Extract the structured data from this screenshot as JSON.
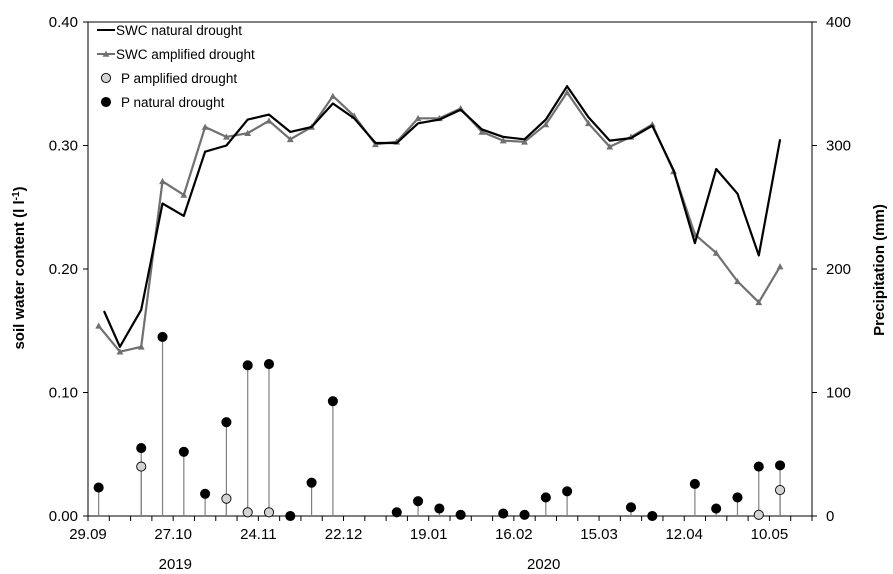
{
  "chart_data": {
    "type": "line",
    "x_categories": [
      "29.09",
      "",
      "",
      "",
      "27.10",
      "",
      "",
      "",
      "24.11",
      "",
      "",
      "",
      "22.12",
      "",
      "",
      "",
      "19.01",
      "",
      "",
      "",
      "16.02",
      "",
      "",
      "",
      "15.03",
      "",
      "",
      "",
      "12.04",
      "",
      "",
      "",
      "10.05",
      ""
    ],
    "x_tick_labels": [
      "29.09",
      "27.10",
      "24.11",
      "22.12",
      "19.01",
      "16.02",
      "15.03",
      "12.04",
      "10.05"
    ],
    "year_labels": [
      "2019",
      "2020"
    ],
    "ylabel": "soil water content  (l l",
    "ylabel_sup": "-1",
    "ylabel_close": ")",
    "y2label": "Precipitation (mm)",
    "ylim": [
      0,
      0.4
    ],
    "y2lim": [
      0,
      400
    ],
    "y_ticks": [
      "0.00",
      "0.10",
      "0.20",
      "0.30",
      "0.40"
    ],
    "y2_ticks": [
      "0",
      "100",
      "200",
      "300",
      "400"
    ],
    "legend_position": "top-left",
    "series": [
      {
        "name": "SWC natural drought",
        "kind": "line",
        "axis": "left",
        "color": "#000000",
        "points": [
          [
            0.25,
            0.166
          ],
          [
            1.0,
            0.137
          ],
          [
            2.0,
            0.167
          ],
          [
            3.0,
            0.253
          ],
          [
            4.0,
            0.243
          ],
          [
            5.0,
            0.295
          ],
          [
            6.0,
            0.3
          ],
          [
            7.0,
            0.321
          ],
          [
            8.0,
            0.325
          ],
          [
            9.0,
            0.311
          ],
          [
            10.0,
            0.315
          ],
          [
            11.0,
            0.334
          ],
          [
            12.0,
            0.322
          ],
          [
            13.0,
            0.302
          ],
          [
            14.0,
            0.302
          ],
          [
            15.0,
            0.318
          ],
          [
            16.0,
            0.321
          ],
          [
            17.0,
            0.329
          ],
          [
            18.0,
            0.313
          ],
          [
            19.0,
            0.307
          ],
          [
            20.0,
            0.305
          ],
          [
            21.0,
            0.321
          ],
          [
            22.0,
            0.348
          ],
          [
            23.0,
            0.323
          ],
          [
            24.0,
            0.304
          ],
          [
            25.0,
            0.306
          ],
          [
            26.0,
            0.316
          ],
          [
            27.0,
            0.28
          ],
          [
            28.0,
            0.221
          ],
          [
            29.0,
            0.281
          ],
          [
            30.0,
            0.261
          ],
          [
            31.0,
            0.211
          ],
          [
            32.0,
            0.305
          ]
        ]
      },
      {
        "name": "SWC amplified drought",
        "kind": "line-marker",
        "axis": "left",
        "color": "#707070",
        "points": [
          [
            0.0,
            0.154
          ],
          [
            1.0,
            0.133
          ],
          [
            2.0,
            0.137
          ],
          [
            3.0,
            0.271
          ],
          [
            4.0,
            0.26
          ],
          [
            5.0,
            0.315
          ],
          [
            6.0,
            0.307
          ],
          [
            7.0,
            0.31
          ],
          [
            8.0,
            0.32
          ],
          [
            9.0,
            0.305
          ],
          [
            10.0,
            0.315
          ],
          [
            11.0,
            0.34
          ],
          [
            12.0,
            0.324
          ],
          [
            13.0,
            0.301
          ],
          [
            14.0,
            0.303
          ],
          [
            15.0,
            0.322
          ],
          [
            16.0,
            0.322
          ],
          [
            17.0,
            0.33
          ],
          [
            18.0,
            0.311
          ],
          [
            19.0,
            0.304
          ],
          [
            20.0,
            0.303
          ],
          [
            21.0,
            0.317
          ],
          [
            22.0,
            0.343
          ],
          [
            23.0,
            0.318
          ],
          [
            24.0,
            0.299
          ],
          [
            25.0,
            0.307
          ],
          [
            26.0,
            0.317
          ],
          [
            27.0,
            0.279
          ],
          [
            28.0,
            0.228
          ],
          [
            29.0,
            0.213
          ],
          [
            30.0,
            0.19
          ],
          [
            31.0,
            0.173
          ],
          [
            32.0,
            0.202
          ]
        ]
      },
      {
        "name": "P amplified drought",
        "kind": "stem",
        "axis": "right",
        "color": "#d3d3d3",
        "points": [
          [
            2.0,
            40
          ],
          [
            6.0,
            14
          ],
          [
            7.0,
            3
          ],
          [
            8.0,
            3
          ],
          [
            31.0,
            1
          ],
          [
            32.0,
            21
          ]
        ]
      },
      {
        "name": "P natural drought",
        "kind": "stem",
        "axis": "right",
        "color": "#000000",
        "points": [
          [
            0.0,
            23
          ],
          [
            2.0,
            55
          ],
          [
            3.0,
            145
          ],
          [
            4.0,
            52
          ],
          [
            5.0,
            18
          ],
          [
            6.0,
            76
          ],
          [
            7.0,
            122
          ],
          [
            8.0,
            123
          ],
          [
            9.0,
            0
          ],
          [
            10.0,
            27
          ],
          [
            11.0,
            93
          ],
          [
            14.0,
            3
          ],
          [
            15.0,
            12
          ],
          [
            16.0,
            6
          ],
          [
            17.0,
            1
          ],
          [
            19.0,
            2
          ],
          [
            20.0,
            1
          ],
          [
            21.0,
            15
          ],
          [
            22.0,
            20
          ],
          [
            25.0,
            7
          ],
          [
            26.0,
            0
          ],
          [
            28.0,
            26
          ],
          [
            29.0,
            6
          ],
          [
            30.0,
            15
          ],
          [
            31.0,
            40
          ],
          [
            32.0,
            41
          ]
        ]
      }
    ]
  }
}
